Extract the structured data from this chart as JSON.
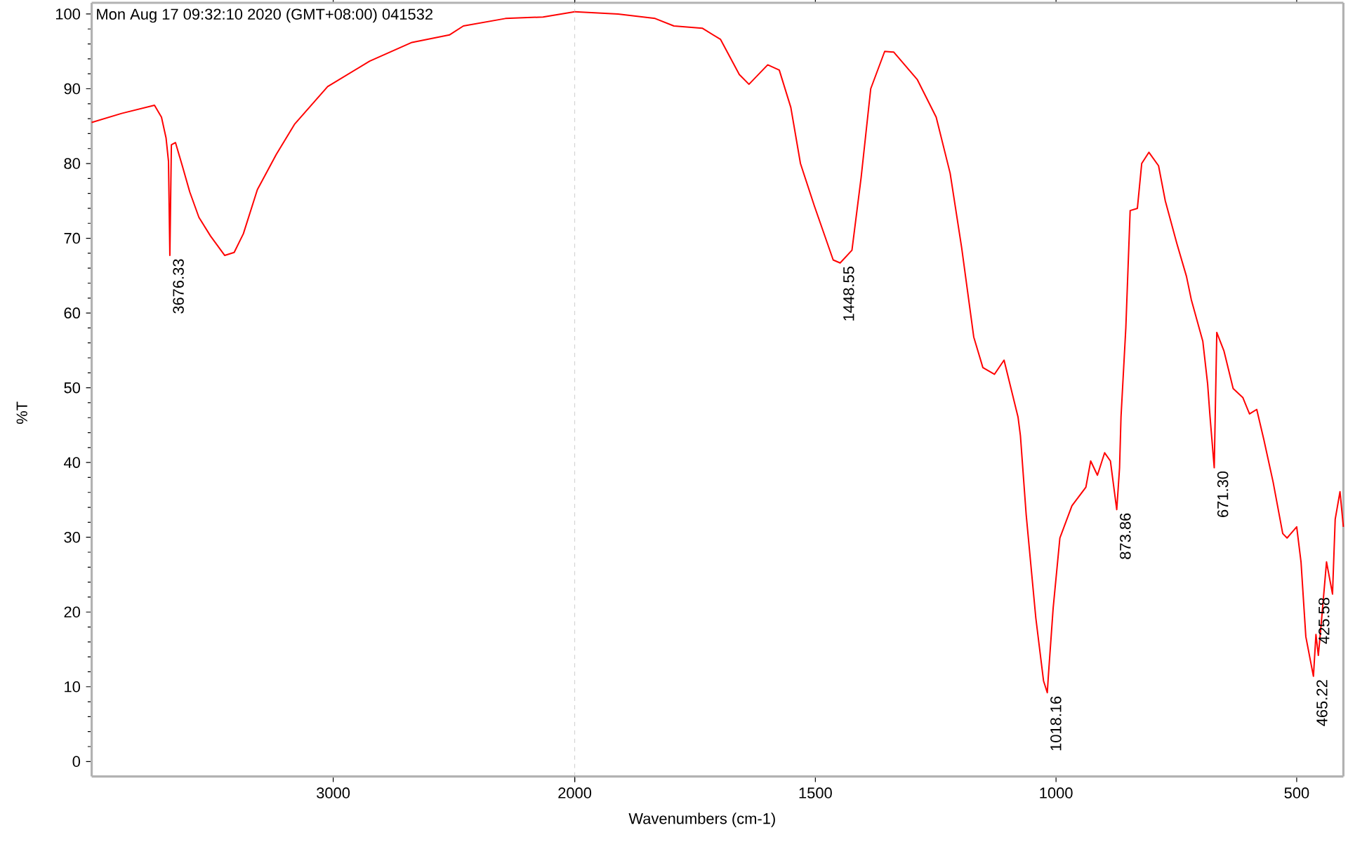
{
  "chart_data": [
    {
      "type": "line",
      "color": "#ff0000",
      "marker": "none",
      "grid": false,
      "ylabel": "%T",
      "x": [
        4000,
        3876,
        3740,
        3711,
        3692,
        3682,
        3676.33,
        3670,
        3653,
        3624,
        3594,
        3556,
        3508,
        3449,
        3410,
        3372,
        3314,
        3236,
        3159,
        3023,
        2849,
        2674,
        2519,
        2461,
        2287,
        2131,
        2000
      ],
      "values": [
        85.5,
        86.7,
        87.8,
        86.2,
        83.4,
        80.3,
        67.7,
        82.5,
        82.8,
        79.6,
        76.2,
        72.8,
        70.3,
        67.7,
        68.1,
        70.6,
        76.5,
        81.2,
        85.3,
        90.3,
        93.7,
        96.2,
        97.2,
        98.4,
        99.4,
        99.6,
        100.3
      ],
      "xlim": [
        4000,
        2000
      ],
      "xticks": [
        3000,
        2000
      ],
      "ylim": [
        -2,
        101.5
      ],
      "yticks": [
        0,
        10,
        20,
        30,
        40,
        50,
        60,
        70,
        80,
        90,
        100
      ],
      "annotations": [
        "Mon Aug 17 09:32:10 2020 (GMT+08:00) 041532",
        {
          "text": "3676.33",
          "x": 3676.33,
          "y": 67.7
        }
      ]
    },
    {
      "type": "line",
      "color": "#ff0000",
      "marker": "none",
      "grid": false,
      "xlabel": "Wavenumbers (cm-1)",
      "tick_labels": "x",
      "x": [
        2000,
        1910,
        1833,
        1794,
        1735,
        1697,
        1658,
        1638,
        1599,
        1575,
        1551,
        1531,
        1502,
        1463,
        1448.55,
        1424,
        1405,
        1385,
        1356,
        1337,
        1288,
        1249,
        1220,
        1196,
        1171,
        1152,
        1128,
        1108,
        1079,
        1074,
        1062,
        1042,
        1026,
        1018.16,
        1016,
        1006,
        992,
        967,
        938,
        928,
        914,
        899,
        887,
        873.86,
        868,
        865,
        855,
        846,
        831,
        822,
        807,
        787,
        773,
        749,
        729,
        719,
        695,
        685,
        680,
        671.3,
        666,
        651,
        632,
        612,
        598,
        583,
        568,
        549,
        529,
        520,
        500,
        491,
        481,
        465.22,
        460,
        455,
        448,
        438,
        425.58,
        420,
        410,
        403
      ],
      "values": [
        100.3,
        100.0,
        99.4,
        98.4,
        98.1,
        96.6,
        91.9,
        90.6,
        93.2,
        92.5,
        87.5,
        80.0,
        74.3,
        67.1,
        66.7,
        68.4,
        78.1,
        90.0,
        95.0,
        94.9,
        91.2,
        86.2,
        78.7,
        68.7,
        56.8,
        52.7,
        51.8,
        53.7,
        46.1,
        43.6,
        33.0,
        19.2,
        10.8,
        9.2,
        11.4,
        20.5,
        29.9,
        34.2,
        36.7,
        40.2,
        38.3,
        41.3,
        40.2,
        33.7,
        39.3,
        46.1,
        58.0,
        73.7,
        74.0,
        80.0,
        81.5,
        79.7,
        75.0,
        69.3,
        64.9,
        61.8,
        56.2,
        50.5,
        46.1,
        39.3,
        57.4,
        54.9,
        49.9,
        48.7,
        46.5,
        47.1,
        43.0,
        37.4,
        30.5,
        29.9,
        31.4,
        26.7,
        16.7,
        11.4,
        17.0,
        14.2,
        19.2,
        26.7,
        22.4,
        32.4,
        36.1,
        31.4
      ],
      "xlim": [
        2000,
        403
      ],
      "xticks": [
        {
          "value": 2000,
          "label": null
        },
        1500,
        1000,
        500
      ],
      "ylim": [
        -2,
        101.5
      ],
      "yticks": [
        0,
        10,
        20,
        30,
        40,
        50,
        60,
        70,
        80,
        90,
        100
      ],
      "ref_lines": [
        {
          "axis": "x",
          "value": 2000,
          "color": "#c0c0c0",
          "line_style": "dashed"
        }
      ],
      "annotations": [
        {
          "text": "1448.55",
          "x": 1448.55,
          "y": 66.7
        },
        {
          "text": "1018.16",
          "x": 1018.16,
          "y": 9.2
        },
        {
          "text": "873.86",
          "x": 873.86,
          "y": 33.7
        },
        {
          "text": "671.30",
          "x": 671.3,
          "y": 39.3
        },
        {
          "text": "465.22",
          "x": 465.22,
          "y": 11.4
        },
        {
          "text": "425.58",
          "x": 425.58,
          "y": 22.4
        }
      ]
    }
  ]
}
